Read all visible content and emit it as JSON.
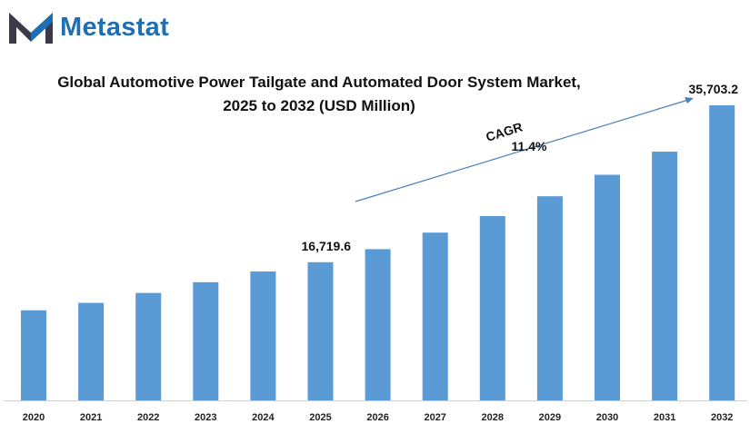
{
  "brand": {
    "name": "Metastat",
    "logo_icon": "metastat-m-logo-icon",
    "color": "#1f6fb5",
    "accent": "#3a3a4a"
  },
  "chart_data": {
    "type": "bar",
    "title_line1": "Global Automotive Power Tailgate and Automated Door System Market,",
    "title_line2": "2025 to 2032 (USD Million)",
    "categories": [
      "2020",
      "2021",
      "2022",
      "2023",
      "2024",
      "2025",
      "2026",
      "2027",
      "2028",
      "2029",
      "2030",
      "2031",
      "2032"
    ],
    "values": [
      10900,
      11800,
      13000,
      14300,
      15600,
      16719.6,
      18300,
      20300,
      22300,
      24700,
      27300,
      30100,
      35703.2
    ],
    "data_labels": [
      {
        "index": 5,
        "text": "16,719.6"
      },
      {
        "index": 12,
        "text": "35,703.2"
      }
    ],
    "annotation": {
      "label": "CAGR",
      "value": "11.4%"
    },
    "bar_color": "#5b9bd5",
    "ylim": [
      0,
      37000
    ],
    "grid": false,
    "legend": "none"
  }
}
